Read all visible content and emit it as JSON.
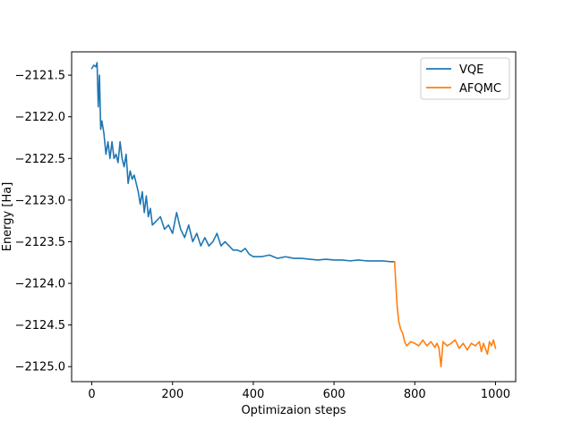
{
  "chart_data": {
    "type": "line",
    "title": "",
    "xlabel": "Optimizaion steps",
    "ylabel": "Energy [Ha]",
    "xlim": [
      -50,
      1050
    ],
    "ylim": [
      -2125.18,
      -2121.22
    ],
    "xticks": [
      0,
      200,
      400,
      600,
      800,
      1000
    ],
    "yticks": [
      -2121.5,
      -2122.0,
      -2122.5,
      -2123.0,
      -2123.5,
      -2124.0,
      -2124.5,
      -2125.0
    ],
    "ytick_labels": [
      "−2121.5",
      "−2122.0",
      "−2122.5",
      "−2123.0",
      "−2123.5",
      "−2124.0",
      "−2124.5",
      "−2125.0"
    ],
    "xtick_labels": [
      "0",
      "200",
      "400",
      "600",
      "800",
      "1000"
    ],
    "grid": false,
    "legend_position": "upper right",
    "series": [
      {
        "name": "VQE",
        "color": "#1f77b4",
        "x": [
          0,
          5,
          10,
          13,
          16,
          19,
          22,
          25,
          30,
          35,
          40,
          45,
          50,
          55,
          60,
          65,
          70,
          75,
          80,
          85,
          90,
          95,
          100,
          105,
          110,
          115,
          120,
          125,
          130,
          135,
          140,
          145,
          150,
          160,
          170,
          180,
          190,
          200,
          210,
          220,
          230,
          240,
          250,
          260,
          270,
          280,
          290,
          300,
          310,
          320,
          330,
          340,
          350,
          360,
          370,
          380,
          390,
          400,
          420,
          440,
          460,
          480,
          500,
          520,
          540,
          560,
          580,
          600,
          620,
          640,
          660,
          680,
          700,
          720,
          740,
          750
        ],
        "y": [
          -2121.42,
          -2121.38,
          -2121.4,
          -2121.35,
          -2121.88,
          -2121.5,
          -2122.15,
          -2122.05,
          -2122.2,
          -2122.45,
          -2122.3,
          -2122.5,
          -2122.3,
          -2122.5,
          -2122.45,
          -2122.55,
          -2122.3,
          -2122.5,
          -2122.6,
          -2122.45,
          -2122.8,
          -2122.65,
          -2122.75,
          -2122.7,
          -2122.8,
          -2122.9,
          -2123.05,
          -2122.9,
          -2123.15,
          -2122.95,
          -2123.2,
          -2123.1,
          -2123.3,
          -2123.25,
          -2123.2,
          -2123.35,
          -2123.3,
          -2123.4,
          -2123.15,
          -2123.35,
          -2123.45,
          -2123.3,
          -2123.5,
          -2123.4,
          -2123.55,
          -2123.45,
          -2123.55,
          -2123.5,
          -2123.4,
          -2123.55,
          -2123.5,
          -2123.55,
          -2123.6,
          -2123.6,
          -2123.62,
          -2123.58,
          -2123.65,
          -2123.68,
          -2123.68,
          -2123.66,
          -2123.7,
          -2123.68,
          -2123.7,
          -2123.7,
          -2123.71,
          -2123.72,
          -2123.71,
          -2123.72,
          -2123.72,
          -2123.73,
          -2123.72,
          -2123.73,
          -2123.73,
          -2123.73,
          -2123.74,
          -2123.74
        ]
      },
      {
        "name": "AFQMC",
        "color": "#ff7f0e",
        "x": [
          750,
          753,
          756,
          760,
          765,
          770,
          775,
          780,
          790,
          800,
          810,
          820,
          830,
          840,
          850,
          855,
          860,
          865,
          870,
          880,
          890,
          900,
          910,
          920,
          930,
          940,
          950,
          960,
          965,
          970,
          980,
          985,
          990,
          995,
          1000
        ],
        "y": [
          -2123.74,
          -2124.0,
          -2124.25,
          -2124.45,
          -2124.55,
          -2124.6,
          -2124.7,
          -2124.75,
          -2124.7,
          -2124.72,
          -2124.75,
          -2124.68,
          -2124.75,
          -2124.7,
          -2124.77,
          -2124.72,
          -2124.78,
          -2125.0,
          -2124.7,
          -2124.75,
          -2124.72,
          -2124.68,
          -2124.78,
          -2124.72,
          -2124.8,
          -2124.72,
          -2124.75,
          -2124.7,
          -2124.82,
          -2124.72,
          -2124.85,
          -2124.7,
          -2124.75,
          -2124.68,
          -2124.78
        ]
      }
    ]
  }
}
